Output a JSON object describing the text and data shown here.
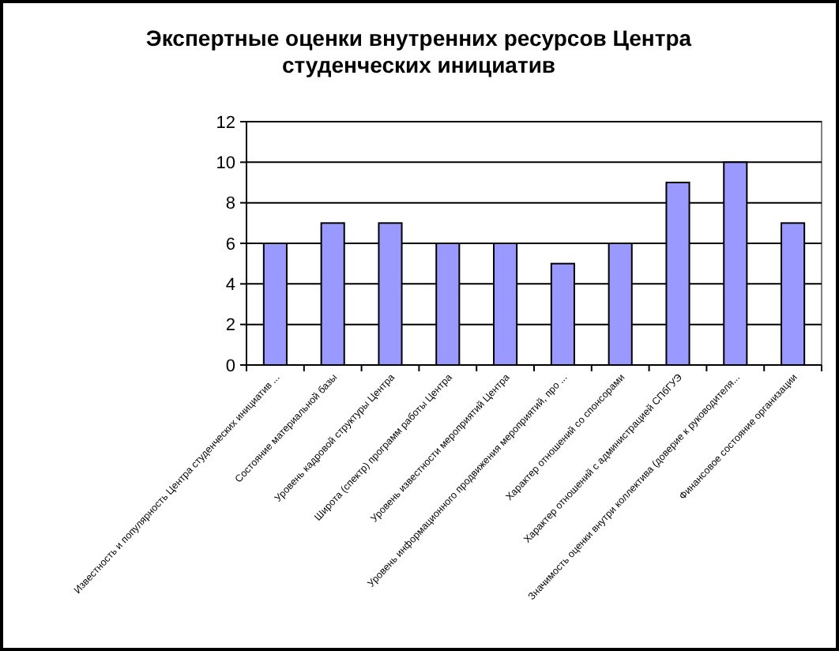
{
  "chart_data": {
    "type": "bar",
    "title": "Экспертные оценки внутренних ресурсов Центра студенческих инициатив",
    "categories": [
      "Известность и популярность Центра студенческих инициатив ...",
      "Состояние материальной базы",
      "Уровень кадровой структуры Центра",
      "Широта (спектр) программ работы Центра",
      "Уровень известности мероприятий Центра",
      "Уровень информационного продвижения мероприятий, про ...",
      "Характер отношений со спонсорами",
      "Характер отношений с администрацией СПбГУЭ",
      "Значимость оценки внутри коллектива (доверие к руководителя...",
      "Финансовое состояние организации"
    ],
    "values": [
      6,
      7,
      7,
      6,
      6,
      5,
      6,
      9,
      10,
      7
    ],
    "color": "#9999ff",
    "ylim": [
      0,
      12
    ],
    "yticks": [
      0,
      2,
      4,
      6,
      8,
      10,
      12
    ],
    "grid": "y"
  }
}
